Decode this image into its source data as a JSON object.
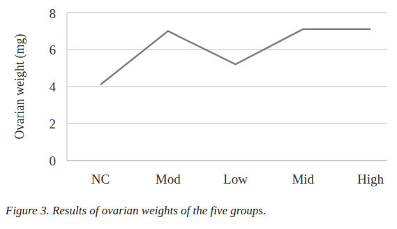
{
  "chart_data": {
    "type": "line",
    "title": "Figure 3. Results of ovarian weights of the five groups.",
    "y_label": "Ovarian weight (mg)",
    "categories": [
      "NC",
      "Mod",
      "Low",
      "Mid",
      "High"
    ],
    "values": [
      4.1,
      7.0,
      5.2,
      7.1,
      7.1
    ],
    "color": "#808080",
    "ylim": [
      0,
      8
    ],
    "yticks": [
      0,
      2,
      4,
      6,
      8
    ],
    "grid": true
  }
}
